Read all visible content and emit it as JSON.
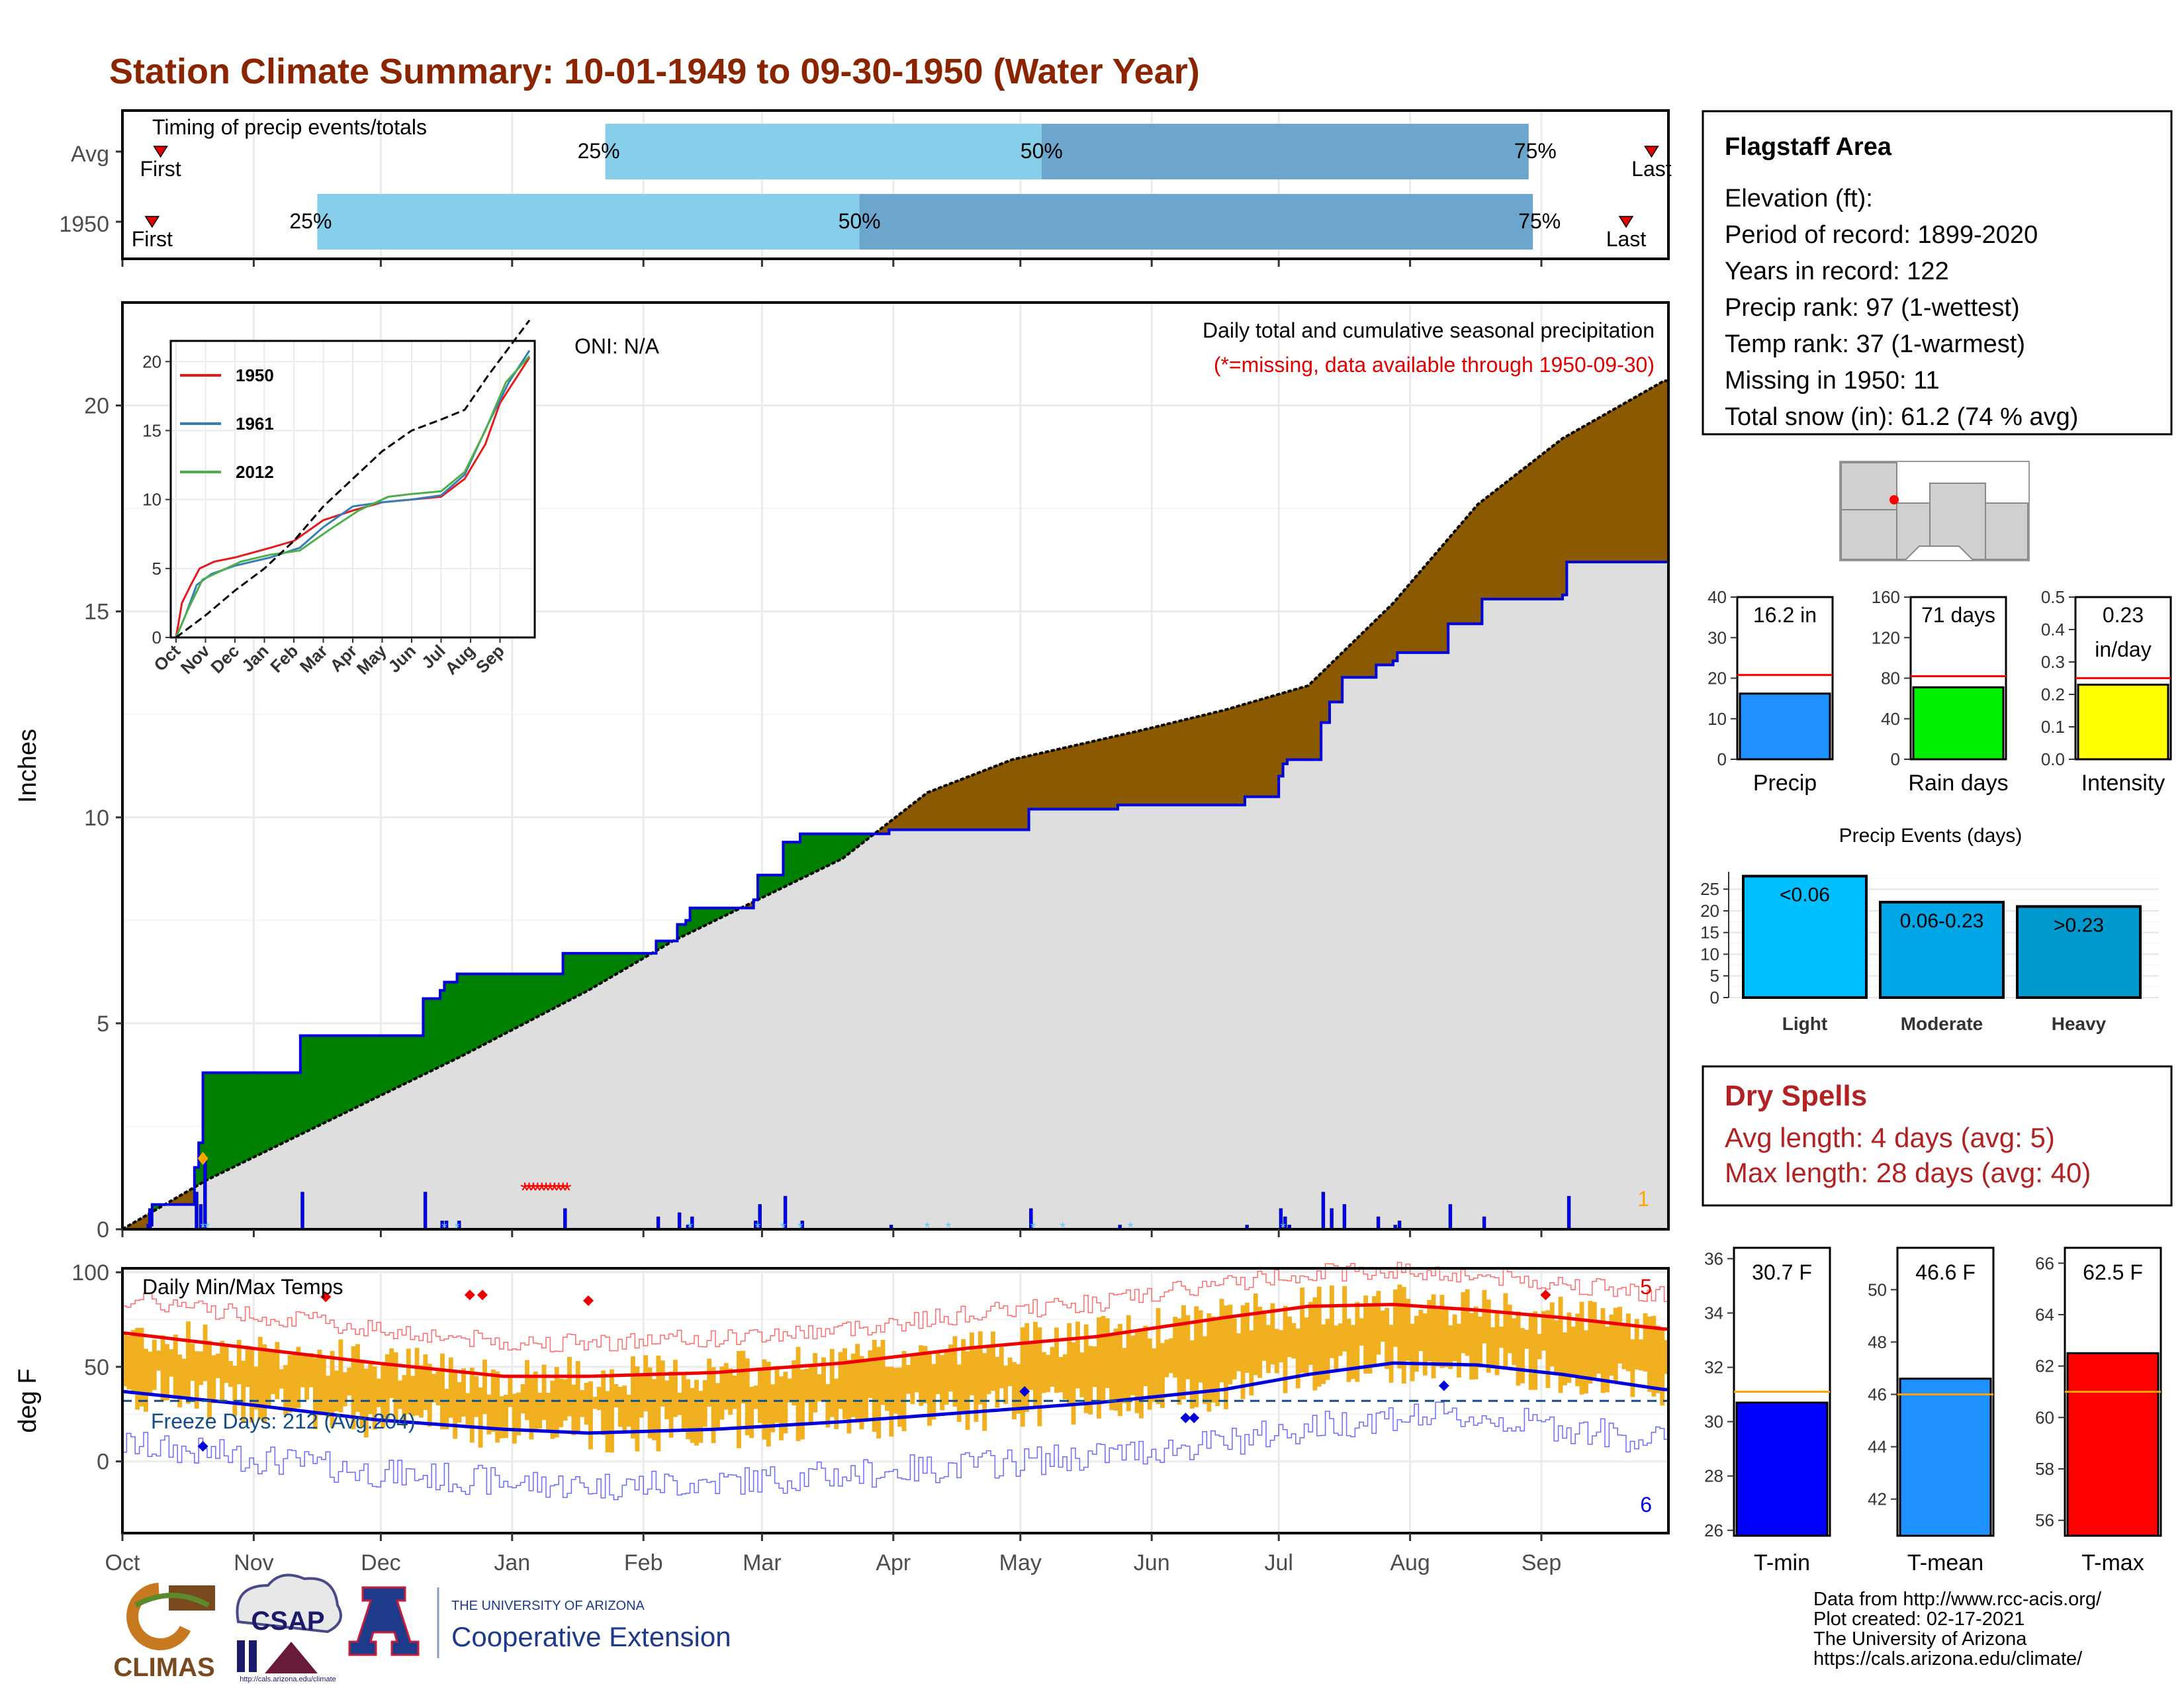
{
  "title": "Station Climate Summary: 10-01-1949 to 09-30-1950 (Water Year)",
  "colors": {
    "title": "#8B2500",
    "q_light": "#87CEEB",
    "q_dark": "#6CA6CD",
    "marker": "#E00000",
    "surplus": "#008000",
    "deficit": "#8B5A00",
    "fill_gray": "#DEDEDE",
    "cum_line": "#0000DD",
    "temp_bar": "#F0B020",
    "tmax_line": "#EE0000",
    "tmin_line": "#0000DD"
  },
  "timing": {
    "title": "Timing of precip events/totals",
    "rows": [
      {
        "label": "Avg",
        "first_label": "First",
        "last_label": "Last",
        "q25_label": "25%",
        "q50_label": "50%",
        "q75_label": "75%",
        "first_day": 9,
        "q25_day": 114,
        "q50_day": 217,
        "q75_day": 332,
        "last_day": 361
      },
      {
        "label": "1950",
        "first_label": "First",
        "last_label": "Last",
        "q25_label": "25%",
        "q50_label": "50%",
        "q75_label": "75%",
        "first_day": 7,
        "q25_day": 46,
        "q50_day": 174,
        "q75_day": 333,
        "last_day": 355
      }
    ]
  },
  "main": {
    "ylabel": "Inches",
    "oni_label": "ONI: N/A",
    "desc_label": "Daily total and cumulative seasonal precipitation",
    "missing_label": "(*=missing, data available through 1950-09-30)",
    "count_label": "1",
    "y_ticks": [
      "0",
      "5",
      "10",
      "15",
      "20"
    ],
    "months": [
      "Oct",
      "Nov",
      "Dec",
      "Jan",
      "Feb",
      "Mar",
      "Apr",
      "May",
      "Jun",
      "Jul",
      "Aug",
      "Sep"
    ]
  },
  "inset": {
    "y_ticks": [
      "0",
      "5",
      "10",
      "15",
      "20"
    ],
    "months": [
      "Oct",
      "Nov",
      "Dec",
      "Jan",
      "Feb",
      "Mar",
      "Apr",
      "May",
      "Jun",
      "Jul",
      "Aug",
      "Sep"
    ],
    "legend": [
      "1950",
      "1961",
      "2012"
    ],
    "legend_colors": [
      "#E41A1C",
      "#377EB8",
      "#4DAF4A"
    ]
  },
  "temps": {
    "title": "Daily Min/Max Temps",
    "ylabel": "deg F",
    "freeze_label": "Freeze Days: 212 (Avg:204)",
    "max_count": "5",
    "min_count": "6",
    "y_ticks": [
      "0",
      "50",
      "100"
    ]
  },
  "station": {
    "name": "Flagstaff Area",
    "lines": [
      "Elevation (ft):",
      "Period of record: 1899-2020",
      "Years in record: 122",
      "Precip rank: 97 (1-wettest)",
      "Temp rank: 37 (1-warmest)",
      "Missing in 1950: 11",
      "Total snow (in): 61.2 (74 % avg)"
    ]
  },
  "small_bars": [
    {
      "label": "Precip",
      "value_label": "16.2 in",
      "value": 16.2,
      "avg": 20.8,
      "ylim": [
        0,
        40
      ],
      "ticks": [
        "0",
        "10",
        "20",
        "30",
        "40"
      ],
      "tick_vals": [
        0,
        10,
        20,
        30,
        40
      ],
      "color": "#1E90FF"
    },
    {
      "label": "Rain days",
      "value_label": "71 days",
      "value": 71,
      "avg": 82,
      "ylim": [
        0,
        160
      ],
      "ticks": [
        "0",
        "40",
        "80",
        "120",
        "160"
      ],
      "tick_vals": [
        0,
        40,
        80,
        120,
        160
      ],
      "color": "#00EE00"
    },
    {
      "label": "Intensity",
      "value_label": "0.23",
      "value_label2": "in/day",
      "value": 0.23,
      "avg": 0.25,
      "ylim": [
        0,
        0.5
      ],
      "ticks": [
        "0.0",
        "0.1",
        "0.2",
        "0.3",
        "0.4",
        "0.5"
      ],
      "tick_vals": [
        0,
        0.1,
        0.2,
        0.3,
        0.4,
        0.5
      ],
      "color": "#FFFF00"
    }
  ],
  "precip_events": {
    "title": "Precip Events (days)",
    "ticks": [
      "0",
      "5",
      "10",
      "15",
      "20",
      "25"
    ],
    "bars": [
      {
        "label": "Light",
        "value_label": "<0.06",
        "value": 28,
        "color": "#00BFFF"
      },
      {
        "label": "Moderate",
        "value_label": "0.06-0.23",
        "value": 22,
        "color": "#00A5E6"
      },
      {
        "label": "Heavy",
        "value_label": ">0.23",
        "value": 21,
        "color": "#0099CC"
      }
    ]
  },
  "dry_spells": {
    "title": "Dry Spells",
    "avg_line": "Avg length: 4 days (avg: 5)",
    "max_line": "Max length: 28 days (avg: 40)"
  },
  "temp_bars": [
    {
      "label": "T-min",
      "value_label": "30.7 F",
      "value": 30.7,
      "avg": 31.1,
      "ylim": [
        25.8,
        36.4
      ],
      "ticks": [
        "26",
        "28",
        "30",
        "32",
        "34",
        "36"
      ],
      "tick_vals": [
        26,
        28,
        30,
        32,
        34,
        36
      ],
      "color": "#0000FF"
    },
    {
      "label": "T-mean",
      "value_label": "46.6 F",
      "value": 46.6,
      "avg": 46.0,
      "ylim": [
        40.6,
        51.6
      ],
      "ticks": [
        "42",
        "44",
        "46",
        "48",
        "50"
      ],
      "tick_vals": [
        42,
        44,
        46,
        48,
        50
      ],
      "color": "#1E90FF"
    },
    {
      "label": "T-max",
      "value_label": "62.5 F",
      "value": 62.5,
      "avg": 61.0,
      "ylim": [
        55.4,
        66.6
      ],
      "ticks": [
        "56",
        "58",
        "60",
        "62",
        "64",
        "66"
      ],
      "tick_vals": [
        56,
        58,
        60,
        62,
        64,
        66
      ],
      "color": "#FF0000"
    }
  ],
  "credits": [
    "Data from http://www.rcc-acis.org/",
    "Plot created: 02-17-2021",
    "The University of Arizona",
    "https://cals.arizona.edu/climate/"
  ],
  "logos": {
    "climas": "CLIMAS",
    "csap": "CSAP",
    "csap_url": "http://cals.arizona.edu/climate",
    "ua_letter": "A",
    "ua_line1": "THE UNIVERSITY OF ARIZONA",
    "ua_line2": "Cooperative Extension"
  },
  "chart_data": [
    {
      "type": "area",
      "title": "Daily total and cumulative seasonal precipitation",
      "ylabel": "Inches",
      "ylim": [
        0,
        22.5
      ],
      "x_unit": "day of water year (Oct 1 = 0)",
      "cumulative_1950": {
        "x": [
          0,
          6,
          7,
          16,
          17,
          18,
          19,
          41,
          42,
          70,
          71,
          74,
          75,
          76,
          78,
          79,
          103,
          104,
          112,
          125,
          126,
          130,
          131,
          133,
          134,
          148,
          149,
          150,
          155,
          156,
          160,
          180,
          181,
          213,
          214,
          234,
          235,
          264,
          265,
          272,
          273,
          274,
          275,
          282,
          283,
          285,
          287,
          288,
          295,
          296,
          300,
          301,
          312,
          313,
          320,
          321,
          340,
          341,
          364
        ],
        "y": [
          0,
          0.1,
          0.6,
          0.6,
          1.5,
          2.1,
          3.8,
          3.8,
          4.7,
          4.7,
          5.6,
          5.6,
          5.8,
          6.0,
          6.0,
          6.2,
          6.2,
          6.7,
          6.7,
          6.7,
          7.0,
          7.0,
          7.4,
          7.5,
          7.8,
          7.8,
          8.0,
          8.6,
          8.6,
          9.4,
          9.6,
          9.6,
          9.7,
          9.7,
          10.2,
          10.2,
          10.3,
          10.3,
          10.5,
          10.5,
          11.0,
          11.3,
          11.4,
          11.4,
          12.3,
          12.8,
          12.8,
          13.4,
          13.4,
          13.7,
          13.8,
          14.0,
          14.0,
          14.7,
          14.7,
          15.3,
          15.4,
          16.2,
          16.2
        ]
      },
      "average_cumulative": {
        "x": [
          0,
          20,
          50,
          80,
          110,
          130,
          150,
          170,
          190,
          210,
          240,
          260,
          280,
          300,
          320,
          340,
          364
        ],
        "y": [
          0,
          1.2,
          2.7,
          4.2,
          5.8,
          7.0,
          8.0,
          9.0,
          10.6,
          11.4,
          12.1,
          12.6,
          13.2,
          15.2,
          17.6,
          19.2,
          20.6
        ]
      },
      "daily": {
        "x": [
          6,
          17,
          18,
          19,
          42,
          71,
          75,
          76,
          79,
          104,
          126,
          131,
          133,
          134,
          149,
          150,
          156,
          160,
          181,
          214,
          235,
          265,
          273,
          274,
          275,
          283,
          285,
          288,
          296,
          300,
          301,
          313,
          321,
          341
        ],
        "y": [
          0.5,
          0.9,
          0.6,
          1.7,
          0.9,
          0.9,
          0.2,
          0.2,
          0.2,
          0.5,
          0.3,
          0.4,
          0.1,
          0.3,
          0.2,
          0.6,
          0.8,
          0.2,
          0.1,
          0.5,
          0.1,
          0.1,
          0.5,
          0.3,
          0.1,
          0.9,
          0.5,
          0.6,
          0.3,
          0.1,
          0.2,
          0.6,
          0.3,
          0.8
        ]
      },
      "missing_days": [
        95,
        96,
        97,
        98,
        99,
        100,
        101,
        102,
        103,
        104,
        105
      ]
    },
    {
      "type": "line",
      "title": "Daily Min/Max Temps",
      "ylabel": "deg F",
      "ylim": [
        -40,
        100
      ],
      "avg_tmax": {
        "x": [
          0,
          30,
          60,
          90,
          110,
          140,
          170,
          200,
          230,
          260,
          280,
          300,
          320,
          340,
          364
        ],
        "y": [
          68,
          60,
          52,
          45,
          45,
          47,
          52,
          60,
          66,
          76,
          82,
          83,
          80,
          76,
          70
        ]
      },
      "avg_tmin": {
        "x": [
          0,
          30,
          60,
          90,
          110,
          140,
          170,
          200,
          230,
          260,
          280,
          300,
          320,
          340,
          364
        ],
        "y": [
          37,
          30,
          22,
          17,
          15,
          17,
          21,
          26,
          31,
          38,
          46,
          52,
          51,
          46,
          38
        ]
      },
      "freeze_threshold": 32
    },
    {
      "type": "line",
      "title": "",
      "x_unit": "month",
      "ylim": [
        0,
        21
      ],
      "series": [
        {
          "name": "1950",
          "x": [
            0,
            0.2,
            0.5,
            0.8,
            1.3,
            2.0,
            3.2,
            4.0,
            5.0,
            6.0,
            7.0,
            8.0,
            9.0,
            9.8,
            10.5,
            11.0,
            12.0
          ],
          "y": [
            0,
            2.5,
            3.8,
            5.0,
            5.5,
            5.8,
            6.5,
            7.0,
            8.5,
            9.2,
            9.8,
            10.0,
            10.2,
            11.5,
            14.0,
            17.0,
            20.3
          ]
        },
        {
          "name": "1961",
          "x": [
            0,
            0.3,
            0.7,
            1.2,
            2.0,
            3.2,
            4.2,
            5.0,
            6.0,
            7.0,
            8.0,
            9.0,
            9.8,
            10.6,
            11.3,
            12.0
          ],
          "y": [
            0,
            1.5,
            3.8,
            4.6,
            5.2,
            5.8,
            6.5,
            8.0,
            9.5,
            9.8,
            10.0,
            10.3,
            11.8,
            15.5,
            18.5,
            20.8
          ]
        },
        {
          "name": "2012",
          "x": [
            0,
            0.4,
            0.9,
            1.5,
            2.2,
            3.2,
            4.2,
            5.2,
            6.2,
            7.2,
            8.0,
            9.0,
            9.8,
            10.5,
            11.2,
            12.0
          ],
          "y": [
            0,
            2.0,
            4.2,
            4.8,
            5.5,
            6.0,
            6.3,
            7.8,
            9.2,
            10.2,
            10.4,
            10.6,
            12.0,
            15.0,
            18.5,
            20.4
          ]
        },
        {
          "x": [
            0,
            1,
            2,
            3,
            4,
            5,
            6,
            7,
            8,
            9,
            9.8,
            10.6,
            11.3,
            12.0
          ],
          "y": [
            0,
            1.6,
            3.4,
            5.0,
            7.0,
            9.5,
            11.5,
            13.5,
            15.0,
            15.8,
            16.5,
            19.0,
            21.0,
            23.0
          ]
        }
      ]
    }
  ]
}
